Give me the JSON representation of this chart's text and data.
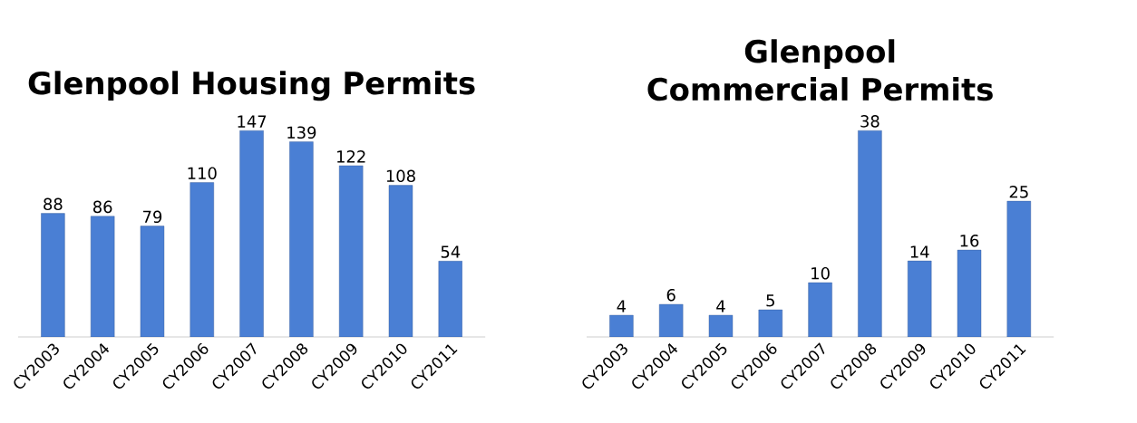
{
  "chart_data": [
    {
      "type": "bar",
      "title": "Glenpool Housing Permits",
      "categories": [
        "CY2003",
        "CY2004",
        "CY2005",
        "CY2006",
        "CY2007",
        "CY2008",
        "CY2009",
        "CY2010",
        "CY2011"
      ],
      "values": [
        88,
        86,
        79,
        110,
        147,
        139,
        122,
        108,
        54
      ],
      "color": "#4a7fd4",
      "data_labels": true,
      "tick_labels": "x"
    },
    {
      "type": "bar",
      "title": "Glenpool Commercial Permits",
      "categories": [
        "CY2003",
        "CY2004",
        "CY2005",
        "CY2006",
        "CY2007",
        "CY2008",
        "CY2009",
        "CY2010",
        "CY2011"
      ],
      "values": [
        4,
        6,
        4,
        5,
        10,
        38,
        14,
        16,
        25
      ],
      "color": "#4a7fd4",
      "data_labels": true,
      "tick_labels": "x"
    }
  ]
}
